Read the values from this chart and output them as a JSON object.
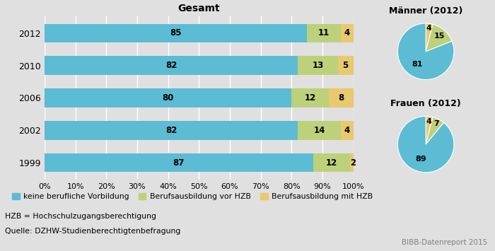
{
  "bar_years": [
    "2012",
    "2010",
    "2006",
    "2002",
    "1999"
  ],
  "bar_data": {
    "keine": [
      85,
      82,
      80,
      82,
      87
    ],
    "vor_hzb": [
      11,
      13,
      12,
      14,
      12
    ],
    "mit_hzb": [
      4,
      5,
      8,
      4,
      2
    ]
  },
  "pie_maenner": [
    81,
    15,
    4
  ],
  "pie_maenner_labels": [
    81,
    15,
    4
  ],
  "pie_frauen": [
    89,
    7,
    4
  ],
  "pie_frauen_labels": [
    89,
    7,
    4
  ],
  "color_list": [
    "#5bbcd4",
    "#bdd17a",
    "#e8c96e"
  ],
  "legend_labels": [
    "keine berufliche Vorbildung",
    "Berufsausbildung vor HZB",
    "Berufsausbildung mit HZB"
  ],
  "title_gesamt": "Gesamt",
  "title_maenner": "Männer (2012)",
  "title_frauen": "Frauen (2012)",
  "xlabel_ticks": [
    0,
    10,
    20,
    30,
    40,
    50,
    60,
    70,
    80,
    90,
    100
  ],
  "footnote1": "HZB = Hochschulzugangsberechtigung",
  "footnote2": "Quelle: DZHW-Studienberechtigtenbefragung",
  "source": "BIBB-Datenreport 2015",
  "bg_color": "#e0e0e0",
  "bar_bg_color": "#d8d8d8"
}
